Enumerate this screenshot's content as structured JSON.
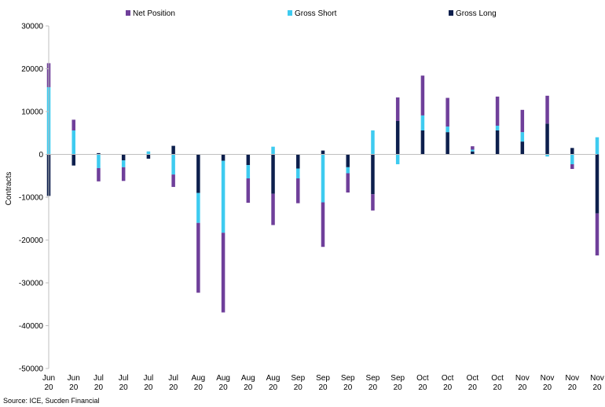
{
  "chart_data": {
    "type": "bar",
    "stacked": true,
    "ylabel": "Contracts",
    "ylim": [
      -50000,
      30000
    ],
    "yticks": [
      30000,
      20000,
      10000,
      0,
      -10000,
      -20000,
      -30000,
      -40000,
      -50000
    ],
    "ytick_labels": [
      "30000",
      "20000",
      "10000",
      "0",
      "-10000",
      "-20000",
      "-30000",
      "-40000",
      "-50000"
    ],
    "grid": false,
    "legend_position": "top",
    "categories": [
      {
        "month": "Jun",
        "year": "20"
      },
      {
        "month": "Jun",
        "year": "20"
      },
      {
        "month": "Jul",
        "year": "20"
      },
      {
        "month": "Jul",
        "year": "20"
      },
      {
        "month": "Jul",
        "year": "20"
      },
      {
        "month": "Jul",
        "year": "20"
      },
      {
        "month": "Aug",
        "year": "20"
      },
      {
        "month": "Aug",
        "year": "20"
      },
      {
        "month": "Aug",
        "year": "20"
      },
      {
        "month": "Aug",
        "year": "20"
      },
      {
        "month": "Sep",
        "year": "20"
      },
      {
        "month": "Sep",
        "year": "20"
      },
      {
        "month": "Sep",
        "year": "20"
      },
      {
        "month": "Sep",
        "year": "20"
      },
      {
        "month": "Sep",
        "year": "20"
      },
      {
        "month": "Oct",
        "year": "20"
      },
      {
        "month": "Oct",
        "year": "20"
      },
      {
        "month": "Oct",
        "year": "20"
      },
      {
        "month": "Oct",
        "year": "20"
      },
      {
        "month": "Nov",
        "year": "20"
      },
      {
        "month": "Nov",
        "year": "20"
      },
      {
        "month": "Nov",
        "year": "20"
      },
      {
        "month": "Nov",
        "year": "20"
      }
    ],
    "series": [
      {
        "name": "Gross Long",
        "color": "#0d1f4d",
        "values": [
          -9700,
          -2600,
          300,
          -1400,
          -1000,
          2000,
          -9000,
          -1500,
          -2500,
          -9200,
          -3300,
          900,
          -3000,
          -9300,
          7800,
          5600,
          5200,
          700,
          5600,
          3000,
          7200,
          1500,
          -13800
        ]
      },
      {
        "name": "Gross Short",
        "color": "#3ecbf0",
        "values": [
          15700,
          5600,
          -3200,
          -1600,
          700,
          -4700,
          -7000,
          -16800,
          -3100,
          1800,
          -2300,
          -11200,
          -1400,
          5600,
          -2300,
          3500,
          1300,
          400,
          1100,
          2200,
          -500,
          -2300,
          4000
        ]
      },
      {
        "name": "Net Position",
        "color": "#6f3f9a",
        "values": [
          5600,
          2500,
          -3100,
          -3200,
          0,
          -2900,
          -16300,
          -18600,
          -5700,
          -7300,
          -5800,
          -10400,
          -4500,
          -3800,
          5500,
          9300,
          6700,
          800,
          6800,
          5200,
          6500,
          -1100,
          -9800
        ]
      }
    ],
    "legend_order": [
      "Net Position",
      "Gross Short",
      "Gross Long"
    ],
    "source": "Source: ICE, Sucden Financial"
  }
}
